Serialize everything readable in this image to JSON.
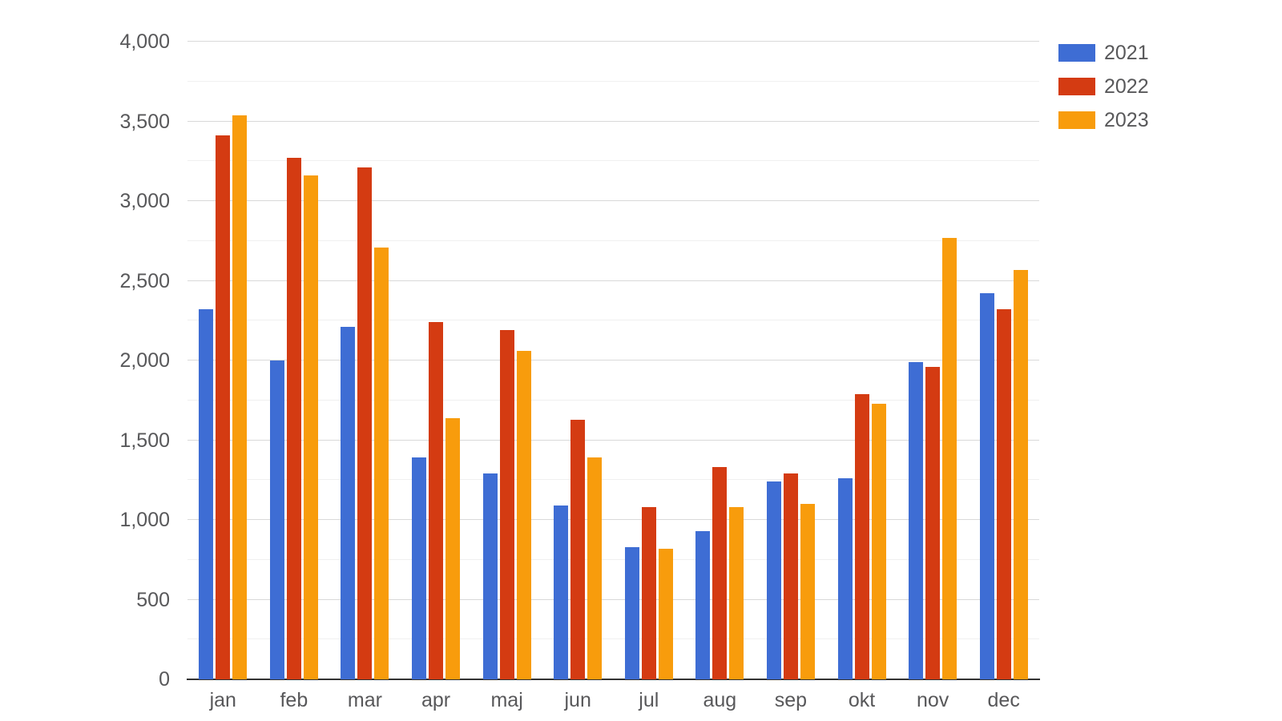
{
  "chart_data": {
    "type": "bar",
    "title": "",
    "xlabel": "",
    "ylabel": "",
    "categories": [
      "jan",
      "feb",
      "mar",
      "apr",
      "maj",
      "jun",
      "jul",
      "aug",
      "sep",
      "okt",
      "nov",
      "dec"
    ],
    "series": [
      {
        "name": "2021",
        "color": "#3e6dd4",
        "values": [
          2320,
          2000,
          2210,
          1390,
          1290,
          1090,
          830,
          930,
          1240,
          1260,
          1990,
          2420
        ]
      },
      {
        "name": "2022",
        "color": "#d43b12",
        "values": [
          3410,
          3270,
          3210,
          2240,
          2190,
          1630,
          1080,
          1330,
          1290,
          1790,
          1960,
          2320
        ]
      },
      {
        "name": "2023",
        "color": "#f89c0c",
        "values": [
          3540,
          3160,
          2710,
          1640,
          2060,
          1390,
          820,
          1080,
          1100,
          1730,
          2770,
          2570
        ]
      }
    ],
    "ylim": [
      0,
      4000
    ],
    "y_ticks": [
      {
        "value": 0,
        "label": "0"
      },
      {
        "value": 500,
        "label": "500"
      },
      {
        "value": 1000,
        "label": "1,000"
      },
      {
        "value": 1500,
        "label": "1,500"
      },
      {
        "value": 2000,
        "label": "2,000"
      },
      {
        "value": 2500,
        "label": "2,500"
      },
      {
        "value": 3000,
        "label": "3,000"
      },
      {
        "value": 3500,
        "label": "3,500"
      },
      {
        "value": 4000,
        "label": "4,000"
      }
    ],
    "grid": {
      "minor_step": 250,
      "major_step": 500,
      "visible": true
    },
    "legend_position": "top-right"
  },
  "colors": {
    "background": "#ffffff",
    "grid_major": "#d9d9d9",
    "grid_minor": "#f0f0f0",
    "axis_line": "#333333",
    "label_text": "#58585a"
  }
}
